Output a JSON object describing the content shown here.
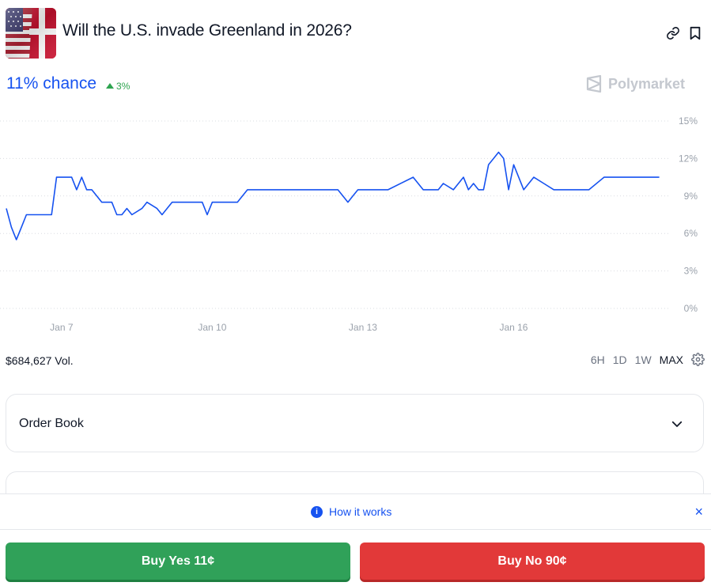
{
  "market": {
    "title": "Will the U.S. invade Greenland in 2026?",
    "thumbnail_icon": "us-denmark-flags-icon",
    "chance": "11% chance",
    "delta": "3%",
    "delta_direction": "up",
    "brand": "Polymarket"
  },
  "header_actions": {
    "link_icon": "link-icon",
    "bookmark_icon": "bookmark-icon"
  },
  "chart_data": {
    "type": "line",
    "title": "",
    "xlabel": "",
    "ylabel": "",
    "x_tick_labels": [
      "Jan 7",
      "Jan 10",
      "Jan 13",
      "Jan 16"
    ],
    "y_tick_labels": [
      "15%",
      "12%",
      "9%",
      "6%",
      "3%",
      "0%"
    ],
    "ylim": [
      0,
      15
    ],
    "grid": true,
    "series": [
      {
        "color": "#1652f0",
        "x_days": [
          5.9,
          6.0,
          6.1,
          6.2,
          6.3,
          6.5,
          6.8,
          6.9,
          7.0,
          7.2,
          7.3,
          7.4,
          7.5,
          7.6,
          7.8,
          8.0,
          8.1,
          8.2,
          8.3,
          8.4,
          8.6,
          8.7,
          8.9,
          9.0,
          9.2,
          9.5,
          9.7,
          9.8,
          9.9,
          10.0,
          10.3,
          10.5,
          10.7,
          10.8,
          11.0,
          11.5,
          12.0,
          12.5,
          12.7,
          12.8,
          12.9,
          13.0,
          13.5,
          14.0,
          14.2,
          14.5,
          14.6,
          14.8,
          15.0,
          15.1,
          15.2,
          15.3,
          15.4,
          15.5,
          15.6,
          15.7,
          15.8,
          15.9,
          16.0,
          16.2,
          16.4,
          16.6,
          16.8,
          17.0,
          17.5,
          17.8,
          18.0,
          18.5,
          18.9
        ],
        "y": [
          8.0,
          6.5,
          5.5,
          6.5,
          7.5,
          7.5,
          7.5,
          10.5,
          10.5,
          10.5,
          9.5,
          10.5,
          9.5,
          9.5,
          8.5,
          8.5,
          7.5,
          7.5,
          8.0,
          7.5,
          8.0,
          8.5,
          8.0,
          7.5,
          8.5,
          8.5,
          8.5,
          8.5,
          7.5,
          8.5,
          8.5,
          8.5,
          9.5,
          9.5,
          9.5,
          9.5,
          9.5,
          9.5,
          8.5,
          9.0,
          9.5,
          9.5,
          9.5,
          10.5,
          9.5,
          9.5,
          10.0,
          9.5,
          10.5,
          9.5,
          10.0,
          9.5,
          9.5,
          11.5,
          12.0,
          12.5,
          12.0,
          9.5,
          11.5,
          9.5,
          10.5,
          10.0,
          9.5,
          9.5,
          9.5,
          10.5,
          10.5,
          10.5,
          10.5
        ]
      }
    ],
    "x_range_days": [
      5.9,
      19.0
    ]
  },
  "footer": {
    "volume": "$684,627 Vol.",
    "ranges": [
      "6H",
      "1D",
      "1W",
      "MAX"
    ],
    "active_range": "MAX",
    "settings_icon": "gear-icon"
  },
  "order_book": {
    "label": "Order Book",
    "chevron_icon": "chevron-down-icon"
  },
  "how_it_works": {
    "label": "How it works",
    "info_icon": "info-icon",
    "close_icon": "close-icon",
    "close_glyph": "×"
  },
  "buy": {
    "yes_label": "Buy Yes 11¢",
    "no_label": "Buy No 90¢",
    "yes_color": "#30a159",
    "no_color": "#e23939"
  }
}
